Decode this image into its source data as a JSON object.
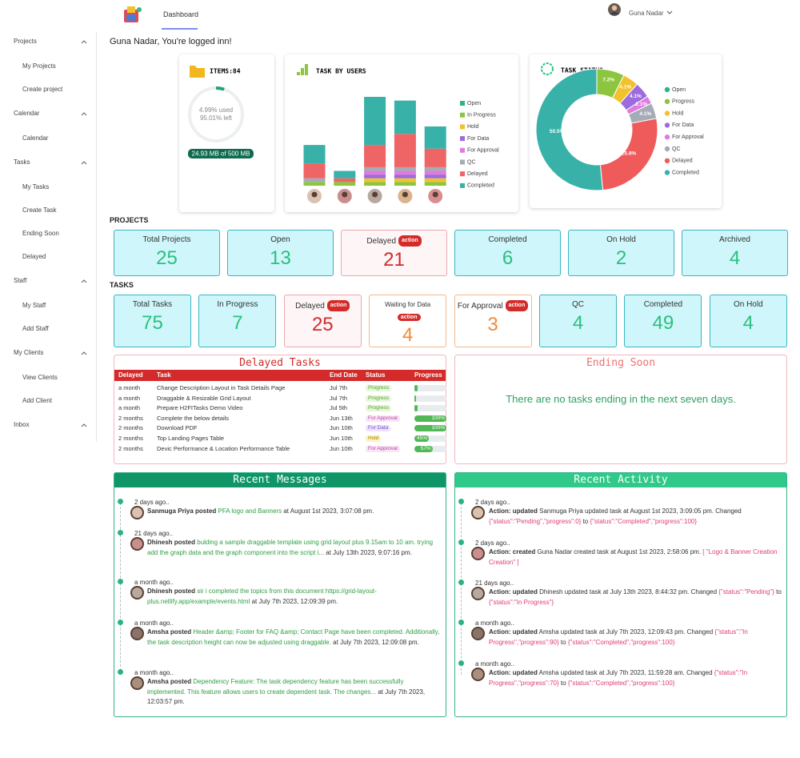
{
  "header": {
    "nav": "Dashboard",
    "user": "Guna Nadar"
  },
  "sidebar": [
    {
      "label": "Projects",
      "items": [
        "My Projects",
        "Create project"
      ]
    },
    {
      "label": "Calendar",
      "items": [
        "Calendar"
      ]
    },
    {
      "label": "Tasks",
      "items": [
        "My Tasks",
        "Create Task",
        "Ending Soon",
        "Delayed"
      ]
    },
    {
      "label": "Staff",
      "items": [
        "My Staff",
        "Add Staff"
      ]
    },
    {
      "label": "My Clients",
      "items": [
        "View Clients",
        "Add Client"
      ]
    },
    {
      "label": "Inbox",
      "items": []
    }
  ],
  "greeting": "Guna Nadar, You're logged inn!",
  "items": {
    "title": "ITEMS:84",
    "used": 4.99,
    "used_label": "4.99% used",
    "left_label": "95.01% left",
    "storage": "24.93 MB of 500 MB"
  },
  "chart_data": [
    {
      "type": "bar",
      "stacked": true,
      "title": "TASK BY USERS",
      "categories": [
        null,
        null,
        null,
        null,
        null
      ],
      "series": [
        {
          "name": "Open",
          "color": "#2fb57c",
          "values": [
            0,
            0,
            0,
            0,
            0
          ]
        },
        {
          "name": "In Progress",
          "color": "#8cc63f",
          "values": [
            1,
            1,
            1,
            1,
            1
          ]
        },
        {
          "name": "Hold",
          "color": "#f2c12e",
          "values": [
            0,
            0,
            1,
            1,
            1
          ]
        },
        {
          "name": "For Data",
          "color": "#9b6bdf",
          "values": [
            0,
            0,
            1,
            1,
            1
          ]
        },
        {
          "name": "For Approval",
          "color": "#e07be0",
          "values": [
            0,
            0,
            1,
            1,
            1
          ]
        },
        {
          "name": "QC",
          "color": "#a6acb5",
          "values": [
            1,
            0,
            1,
            1,
            1
          ]
        },
        {
          "name": "Delayed",
          "color": "#ef6464",
          "values": [
            4,
            1,
            6,
            9,
            5
          ]
        },
        {
          "name": "Completed",
          "color": "#38b2a8",
          "values": [
            5,
            2,
            13,
            9,
            6
          ]
        }
      ]
    },
    {
      "type": "pie",
      "donut": true,
      "title": "TASK STATUS",
      "categories": [
        "Open",
        "Progress",
        "Hold",
        "For Data",
        "For Approval",
        "QC",
        "Delayed",
        "Completed"
      ],
      "values": [
        0,
        7.2,
        4.1,
        4.1,
        2.1,
        4.1,
        25.8,
        50.5
      ],
      "value_labels": [
        null,
        "7.2%",
        "4.1%",
        "4.1%",
        "2.1%",
        "4.1%",
        "25.8%",
        "50.5%"
      ],
      "colors": [
        "#2fb57c",
        "#8cc63f",
        "#f2c12e",
        "#9b6bdf",
        "#e07be0",
        "#a6acb5",
        "#ef5b5b",
        "#38b2a8"
      ]
    }
  ],
  "projects": {
    "title": "PROJECTS",
    "cards": [
      {
        "label": "Total Projects",
        "value": 25,
        "color": "#2bbf7e",
        "border": "#3ab5c2"
      },
      {
        "label": "Open",
        "value": 13,
        "color": "#2bbf7e",
        "border": "#3ab5c2"
      },
      {
        "label": "Delayed",
        "badge": "action",
        "value": 21,
        "color": "#d42a2a",
        "border": "#f0a6ae"
      },
      {
        "label": "Completed",
        "value": 6,
        "color": "#2bbf7e",
        "border": "#3ab5c2"
      },
      {
        "label": "On Hold",
        "value": 2,
        "color": "#2bbf7e",
        "border": "#3ab5c2"
      },
      {
        "label": "Archived",
        "value": 4,
        "color": "#2bbf7e",
        "border": "#3ab5c2"
      }
    ]
  },
  "tasks": {
    "title": "TASKS",
    "cards": [
      {
        "label": "Total Tasks",
        "value": 75,
        "color": "#2bbf7e",
        "border": "#3ab5c2"
      },
      {
        "label": "In Progress",
        "value": 7,
        "color": "#2bbf7e",
        "border": "#3ab5c2"
      },
      {
        "label": "Delayed",
        "badge": "action",
        "value": 25,
        "color": "#d42a2a",
        "border": "#f0a6ae"
      },
      {
        "label": "Waiting for Data",
        "badge": "action",
        "value": 4,
        "color": "#f08a3a",
        "border": "#f3b98a"
      },
      {
        "label": "For Approval",
        "badge": "action",
        "value": 3,
        "color": "#f08a3a",
        "border": "#f3b98a"
      },
      {
        "label": "QC",
        "value": 4,
        "color": "#2bbf7e",
        "border": "#3ab5c2"
      },
      {
        "label": "Completed",
        "value": 49,
        "color": "#2bbf7e",
        "border": "#3ab5c2"
      },
      {
        "label": "On Hold",
        "value": 4,
        "color": "#2bbf7e",
        "border": "#3ab5c2"
      }
    ]
  },
  "delayed_tasks": {
    "title": "Delayed Tasks",
    "columns": [
      "Delayed",
      "Task",
      "End Date",
      "Status",
      "Progress"
    ],
    "rows": [
      [
        "a month",
        "Change Description Layout in Task Details Page",
        "Jul 7th",
        "Progress"
      ],
      [
        "a month",
        "Draggable & Resizable Grid Layout",
        "Jul 7th",
        "Progress"
      ],
      [
        "a month",
        "Prepare H2FITasks Demo Video",
        "Jul 5th",
        "Progress"
      ],
      [
        "2 months",
        "Complete the below details",
        "Jun 13th",
        "For Approval"
      ],
      [
        "2 months",
        "Download PDF",
        "Jun 10th",
        "For Data"
      ],
      [
        "2 months",
        "Top Landing Pages Table",
        "Jun 10th",
        "Hold"
      ],
      [
        "2 months",
        "Devic Performance & Location Performance Table",
        "Jun 10th",
        "For Approval"
      ]
    ],
    "progress": [
      10,
      0,
      10,
      100,
      100,
      45,
      57
    ],
    "progress_labels": [
      null,
      null,
      null,
      "100%",
      "100%",
      "45%",
      "57%"
    ]
  },
  "ending_soon": {
    "title": "Ending Soon",
    "message": "There are no tasks ending in the next seven days."
  },
  "messages": {
    "title": "Recent Messages",
    "items": [
      {
        "time": "2 days ago..",
        "author": "Sanmuga Priya posted",
        "message": "PFA logo and Banners",
        "when": "at August 1st 2023, 3:07:08 pm."
      },
      {
        "time": "21 days ago..",
        "author": "Dhinesh posted",
        "message": "bulding a sample draggable template using grid layout plus 9.15am to 10 am. trying add the graph data and the graph component into the script i...",
        "when": "at July 13th 2023, 9:07:16 pm."
      },
      {
        "time": "a month ago..",
        "author": "Dhinesh posted",
        "message": "sir i completed the topics from this document https://grid-layout-plus.netlify.app/example/events.html",
        "when": "at July 7th 2023, 12:09:39 pm."
      },
      {
        "time": "a month ago..",
        "author": "Amsha posted",
        "message": "Header &amp; Footer for FAQ &amp; Contact Page have been completed. Additionally, the task description height can now be adjusted using draggable.",
        "when": "at July 7th 2023, 12:09:08 pm."
      },
      {
        "time": "a month ago..",
        "author": "Amsha posted",
        "message": "Dependency Feature: The task dependency feature has been successfully implemented. This feature allows users to create dependent task. The changes...",
        "when": "at July 7th 2023, 12:03:57 pm."
      }
    ]
  },
  "activity": {
    "title": "Recent Activity",
    "items": [
      {
        "time": "2 days ago..",
        "action": "Action: updated",
        "text": "Sanmuga Priya updated task at August 1st 2023, 3:09:05 pm.  Changed",
        "old": "{\"status\":\"Pending\",\"progress\":0}",
        "join": "to",
        "new": "{\"status\":\"Completed\",\"progress\":100}"
      },
      {
        "time": "2 days ago..",
        "action": "Action: created",
        "text": "Guna Nadar created task at August 1st 2023, 2:58:06 pm.",
        "old": "[ \"Logo & Banner Creation Creation\" ]"
      },
      {
        "time": "21 days ago..",
        "action": "Action: updated",
        "text": "Dhinesh updated task at July 13th 2023, 8:44:32 pm.  Changed",
        "old": "{\"status\":\"Pending\"}",
        "join": "to",
        "new": "{\"status\":\"In Progress\"}"
      },
      {
        "time": "a month ago..",
        "action": "Action: updated",
        "text": "Amsha updated task at July 7th 2023, 12:09:43 pm.  Changed",
        "old": "{\"status\":\"In Progress\",\"progress\":90}",
        "join": "to",
        "new": "{\"status\":\"Completed\",\"progress\":100}"
      },
      {
        "time": "a month ago..",
        "action": "Action: updated",
        "text": "Amsha updated task at July 7th 2023, 11:59:28 am.  Changed",
        "old": "{\"status\":\"In Progress\",\"progress\":70}",
        "join": "to",
        "new": "{\"status\":\"Completed\",\"progress\":100}"
      }
    ]
  }
}
